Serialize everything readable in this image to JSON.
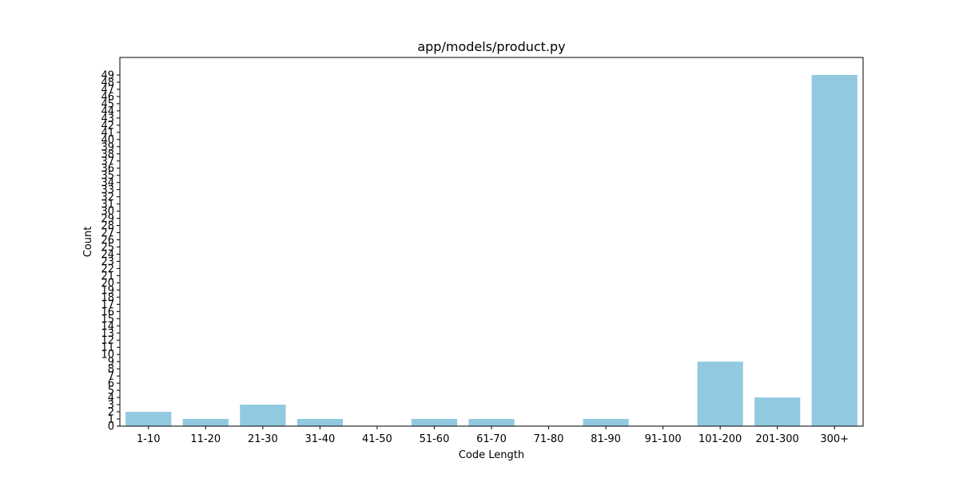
{
  "chart_data": {
    "type": "bar",
    "title": "app/models/product.py",
    "xlabel": "Code Length",
    "ylabel": "Count",
    "categories": [
      "1-10",
      "11-20",
      "21-30",
      "31-40",
      "41-50",
      "51-60",
      "61-70",
      "71-80",
      "81-90",
      "91-100",
      "101-200",
      "201-300",
      "300+"
    ],
    "values": [
      2,
      1,
      3,
      1,
      0,
      1,
      1,
      0,
      1,
      0,
      9,
      4,
      49
    ],
    "ylim": [
      0,
      51.45
    ],
    "yticks": [
      0,
      1,
      2,
      3,
      4,
      5,
      6,
      7,
      8,
      9,
      10,
      11,
      12,
      13,
      14,
      15,
      16,
      17,
      18,
      19,
      20,
      21,
      22,
      23,
      24,
      25,
      26,
      27,
      28,
      29,
      30,
      31,
      32,
      33,
      34,
      35,
      36,
      37,
      38,
      39,
      40,
      41,
      42,
      43,
      44,
      45,
      46,
      47,
      48,
      49
    ],
    "bar_color": "#92c9e0",
    "grid": false,
    "legend": "none"
  }
}
